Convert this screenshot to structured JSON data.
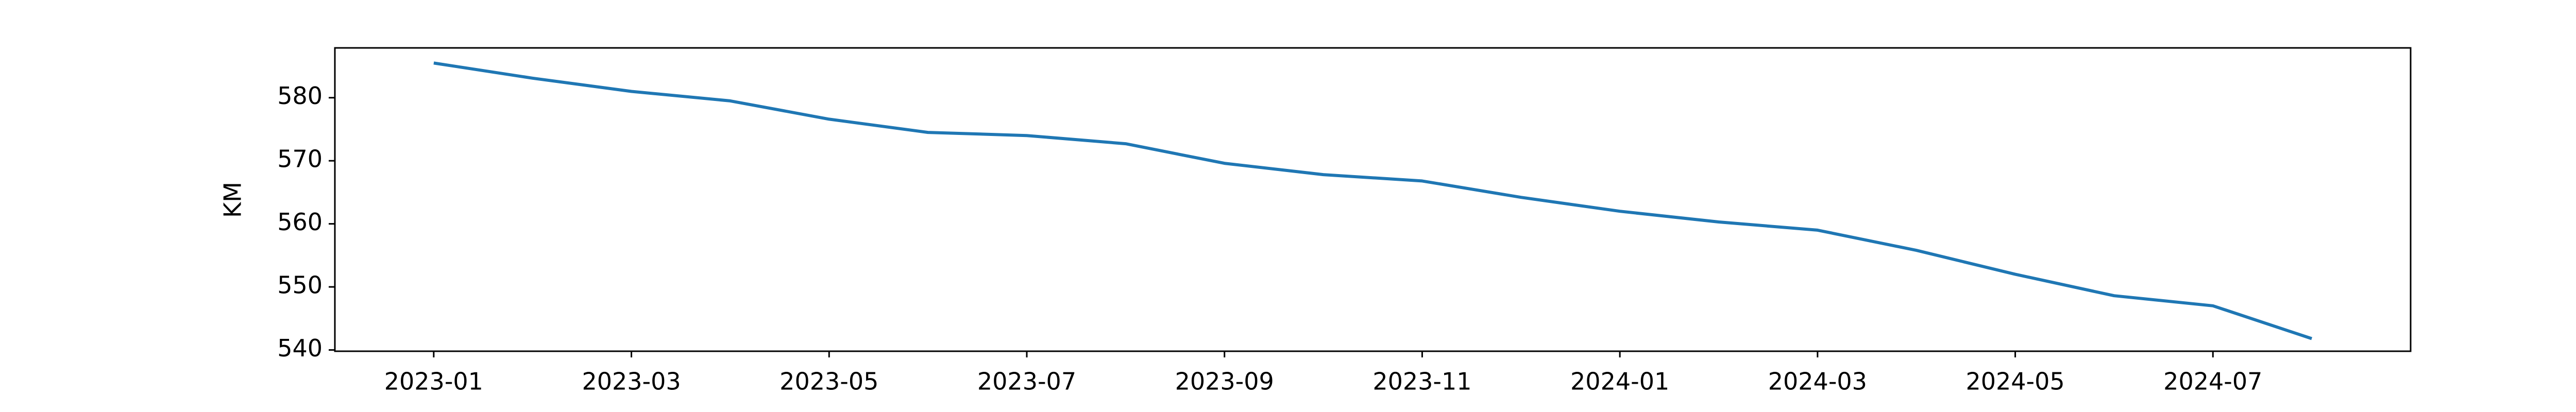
{
  "chart_data": {
    "type": "line",
    "y_label": "KM",
    "x": [
      "2023-01",
      "2023-02",
      "2023-03",
      "2023-04",
      "2023-05",
      "2023-06",
      "2023-07",
      "2023-08",
      "2023-09",
      "2023-10",
      "2023-11",
      "2023-12",
      "2024-01",
      "2024-02",
      "2024-03",
      "2024-04",
      "2024-05",
      "2024-06",
      "2024-07",
      "2024-08"
    ],
    "series": [
      {
        "color": "#1f77b4",
        "values": [
          585.5,
          583.1,
          581.0,
          579.5,
          576.6,
          574.5,
          574.0,
          572.7,
          569.6,
          567.8,
          566.8,
          564.2,
          562.0,
          560.3,
          559.0,
          555.8,
          552.0,
          548.6,
          547.0,
          541.8
        ]
      }
    ],
    "xlim": [
      "2022-12",
      "2024-09"
    ],
    "xticks": [
      "2023-01",
      "2023-03",
      "2023-05",
      "2023-07",
      "2023-09",
      "2023-11",
      "2024-01",
      "2024-03",
      "2024-05",
      "2024-07"
    ],
    "ylim": [
      539.8,
      587.9
    ],
    "yticks": [
      540,
      550,
      560,
      570,
      580
    ],
    "grid": false
  }
}
